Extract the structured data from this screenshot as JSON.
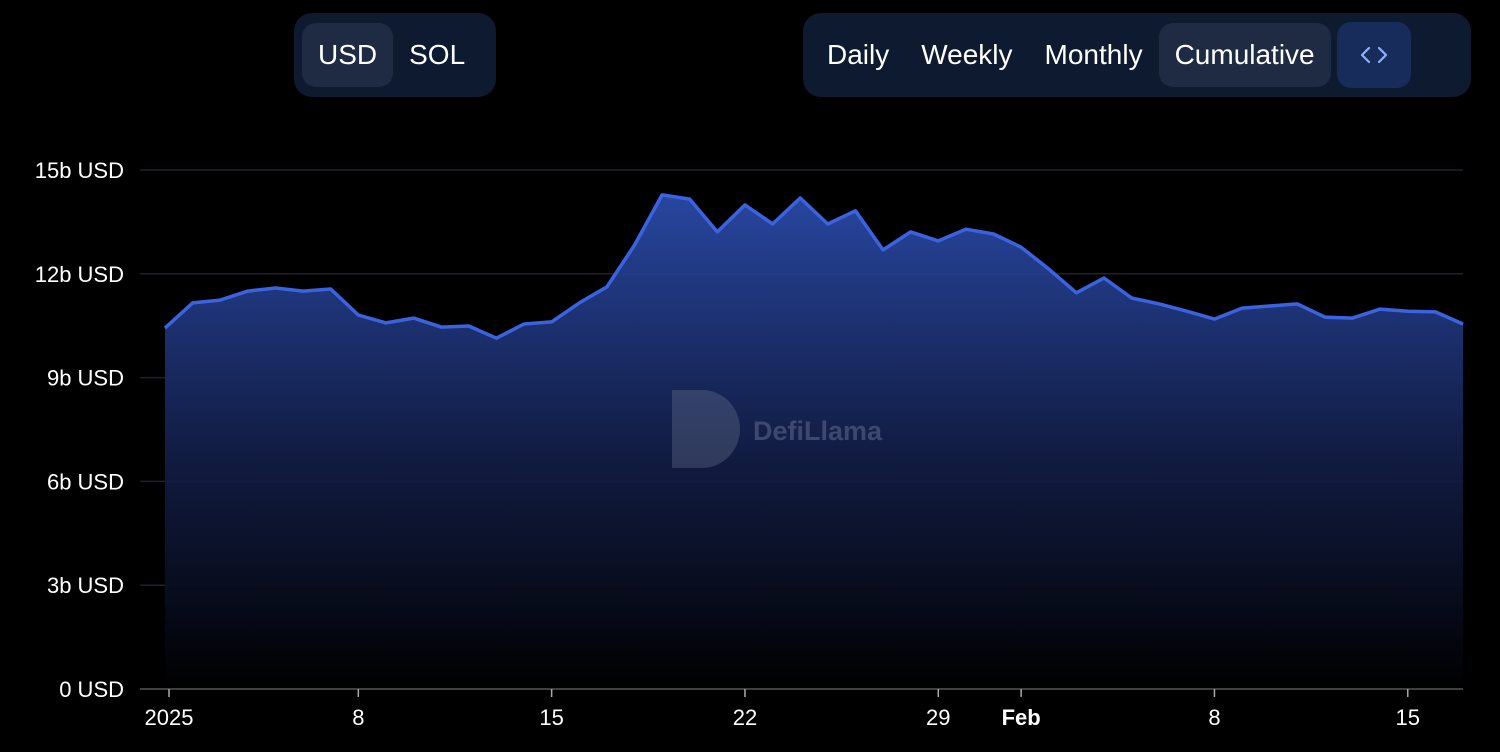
{
  "ui": {
    "currency": [
      "USD",
      "SOL"
    ],
    "period": [
      "Daily",
      "Weekly",
      "Monthly",
      "Cumulative"
    ]
  },
  "chart_data": {
    "type": "area",
    "watermark": "DefiLlama",
    "categories": [
      "2025",
      null,
      null,
      null,
      null,
      null,
      null,
      "8",
      null,
      null,
      null,
      null,
      null,
      null,
      "15",
      null,
      null,
      null,
      null,
      null,
      null,
      "22",
      null,
      null,
      null,
      null,
      null,
      null,
      "29",
      null,
      null,
      "Feb",
      null,
      null,
      null,
      null,
      null,
      null,
      "8",
      null,
      null,
      null,
      null,
      null,
      null,
      "15",
      null,
      null
    ],
    "values": [
      10.43,
      11.16,
      11.24,
      11.5,
      11.59,
      11.5,
      11.56,
      10.81,
      10.58,
      10.72,
      10.46,
      10.49,
      10.14,
      10.55,
      10.61,
      11.16,
      11.62,
      12.83,
      14.28,
      14.16,
      13.21,
      13.99,
      13.44,
      14.19,
      13.44,
      13.82,
      12.69,
      13.21,
      12.95,
      13.29,
      13.15,
      12.77,
      12.14,
      11.45,
      11.88,
      11.3,
      11.13,
      10.92,
      10.69,
      11.01,
      11.07,
      11.13,
      10.75,
      10.72,
      10.98,
      10.92,
      10.9,
      10.55
    ],
    "color": "#3b62e0",
    "ylim": [
      0,
      15
    ],
    "yticks": [
      {
        "value": 0,
        "label": "0 USD"
      },
      {
        "value": 3,
        "label": "3b USD"
      },
      {
        "value": 6,
        "label": "6b USD"
      },
      {
        "value": 9,
        "label": "9b USD"
      },
      {
        "value": 12,
        "label": "12b USD"
      },
      {
        "value": 15,
        "label": "15b USD"
      }
    ],
    "grid": true
  }
}
